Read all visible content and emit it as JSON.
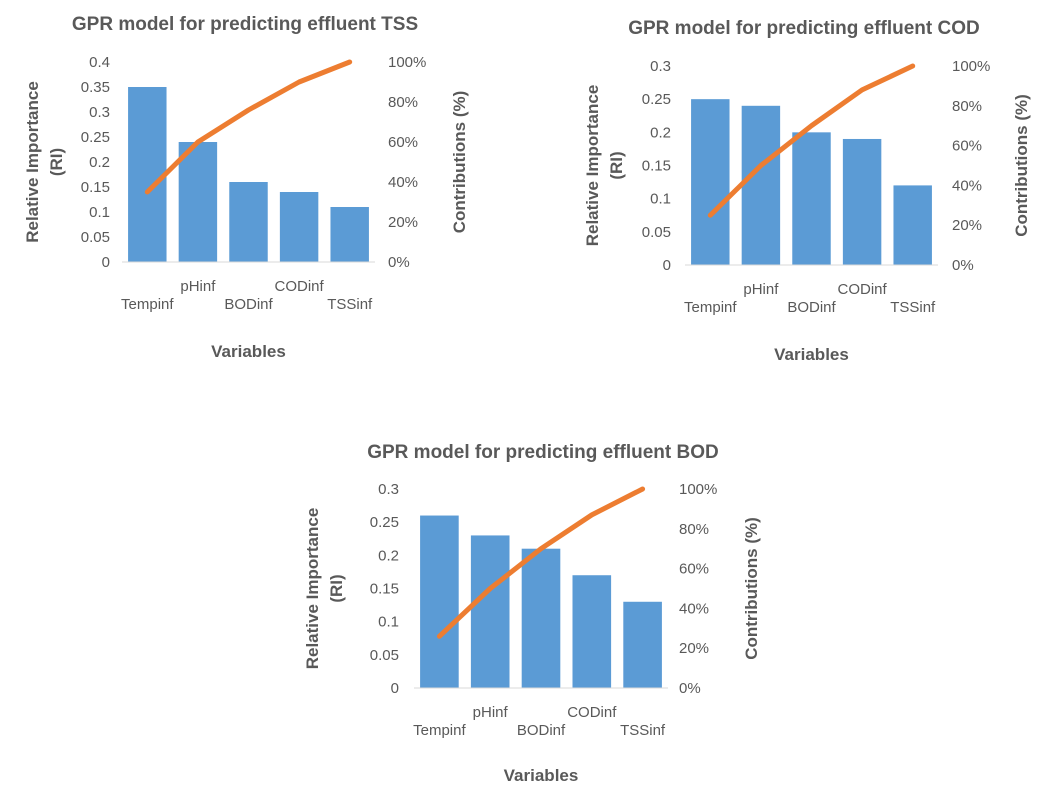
{
  "chart_data": [
    {
      "type": "bar",
      "title": "GPR model for predicting effluent TSS",
      "xlabel": "Variables",
      "ylabel": "Relative Importance (RI)",
      "ylabel_lines": [
        "Relative Importance",
        "(RI)"
      ],
      "y2label": "Contributions (%)",
      "categories": [
        "Tempinf",
        "pHinf",
        "BODinf",
        "CODinf",
        "TSSinf"
      ],
      "series": [
        {
          "type": "bar",
          "axis": "left",
          "values": [
            0.35,
            0.24,
            0.16,
            0.14,
            0.11
          ]
        },
        {
          "type": "line",
          "axis": "right",
          "values": [
            35,
            60,
            76,
            90,
            100
          ]
        }
      ],
      "ylim": [
        0,
        0.4
      ],
      "yticks": [
        "0",
        "0.05",
        "0.1",
        "0.15",
        "0.2",
        "0.25",
        "0.3",
        "0.35",
        "0.4"
      ],
      "y2lim": [
        0,
        100
      ],
      "y2ticks": [
        "0%",
        "20%",
        "40%",
        "60%",
        "80%",
        "100%"
      ],
      "grid": false,
      "colors": {
        "bar": "#5B9BD5",
        "line": "#ED7D31"
      }
    },
    {
      "type": "bar",
      "title": "GPR model for predicting effluent COD",
      "xlabel": "Variables",
      "ylabel": "Relative Importance (RI)",
      "ylabel_lines": [
        "Relative Importance",
        "(RI)"
      ],
      "y2label": "Contributions (%)",
      "categories": [
        "Tempinf",
        "pHinf",
        "BODinf",
        "CODinf",
        "TSSinf"
      ],
      "series": [
        {
          "type": "bar",
          "axis": "left",
          "values": [
            0.25,
            0.24,
            0.2,
            0.19,
            0.12
          ]
        },
        {
          "type": "line",
          "axis": "right",
          "values": [
            25,
            50,
            70,
            88,
            100
          ]
        }
      ],
      "ylim": [
        0,
        0.3
      ],
      "yticks": [
        "0",
        "0.05",
        "0.1",
        "0.15",
        "0.2",
        "0.25",
        "0.3"
      ],
      "y2lim": [
        0,
        100
      ],
      "y2ticks": [
        "0%",
        "20%",
        "40%",
        "60%",
        "80%",
        "100%"
      ],
      "grid": false,
      "colors": {
        "bar": "#5B9BD5",
        "line": "#ED7D31"
      }
    },
    {
      "type": "bar",
      "title": "GPR model for predicting effluent BOD",
      "xlabel": "Variables",
      "ylabel": "Relative Importance (RI)",
      "ylabel_lines": [
        "Relative Importance",
        "(RI)"
      ],
      "y2label": "Contributions (%)",
      "categories": [
        "Tempinf",
        "pHinf",
        "BODinf",
        "CODinf",
        "TSSinf"
      ],
      "series": [
        {
          "type": "bar",
          "axis": "left",
          "values": [
            0.26,
            0.23,
            0.21,
            0.17,
            0.13
          ]
        },
        {
          "type": "line",
          "axis": "right",
          "values": [
            26,
            50,
            70,
            87,
            100
          ]
        }
      ],
      "ylim": [
        0,
        0.3
      ],
      "yticks": [
        "0",
        "0.05",
        "0.1",
        "0.15",
        "0.2",
        "0.25",
        "0.3"
      ],
      "y2lim": [
        0,
        100
      ],
      "y2ticks": [
        "0%",
        "20%",
        "40%",
        "60%",
        "80%",
        "100%"
      ],
      "grid": false,
      "colors": {
        "bar": "#5B9BD5",
        "line": "#ED7D31"
      }
    }
  ]
}
